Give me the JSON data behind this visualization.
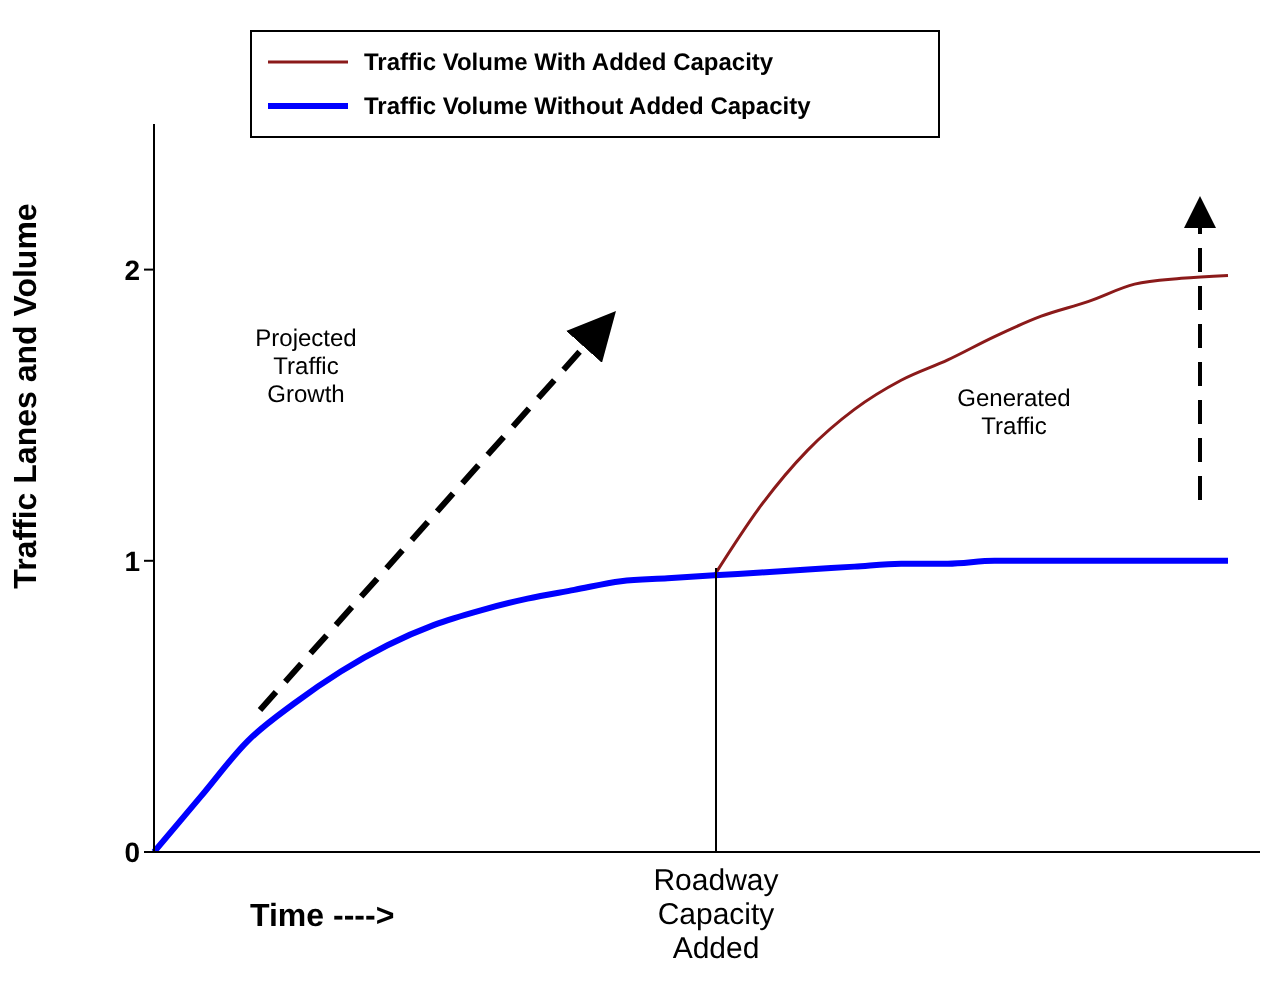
{
  "chart_data": {
    "type": "line",
    "ylabel": "Traffic Lanes and Volume",
    "xlabel": "Time ---->",
    "categories": [
      null,
      null,
      null,
      null,
      null,
      null,
      null,
      null,
      null,
      null,
      null,
      null,
      null,
      null,
      null,
      null,
      null,
      null,
      null,
      null,
      null,
      null,
      null,
      null
    ],
    "series": [
      {
        "name": "Traffic Volume With Added Capacity",
        "color": "#8b1a1a",
        "values": [
          null,
          null,
          null,
          null,
          null,
          null,
          null,
          null,
          null,
          null,
          null,
          null,
          0.95,
          1.19,
          1.38,
          1.52,
          1.62,
          1.69,
          1.77,
          1.84,
          1.89,
          1.95,
          1.97,
          1.98
        ]
      },
      {
        "name": "Traffic Volume Without Added Capacity",
        "color": "#0000ff",
        "values": [
          0,
          0.19,
          0.38,
          0.51,
          0.62,
          0.71,
          0.78,
          0.83,
          0.87,
          0.9,
          0.93,
          0.94,
          0.95,
          0.96,
          0.97,
          0.98,
          0.99,
          0.99,
          1.0,
          1.0,
          1.0,
          1.0,
          1.0,
          1.0
        ]
      }
    ],
    "ylim": [
      0,
      2.5
    ],
    "yticks": [
      0,
      1,
      2
    ],
    "tick_labels": "y",
    "legend": "top",
    "marker": "none",
    "line_style": "solid",
    "grid": false,
    "annotations": [
      "Projected Traffic Growth",
      "Generated Traffic",
      "Roadway Capacity Added"
    ]
  }
}
